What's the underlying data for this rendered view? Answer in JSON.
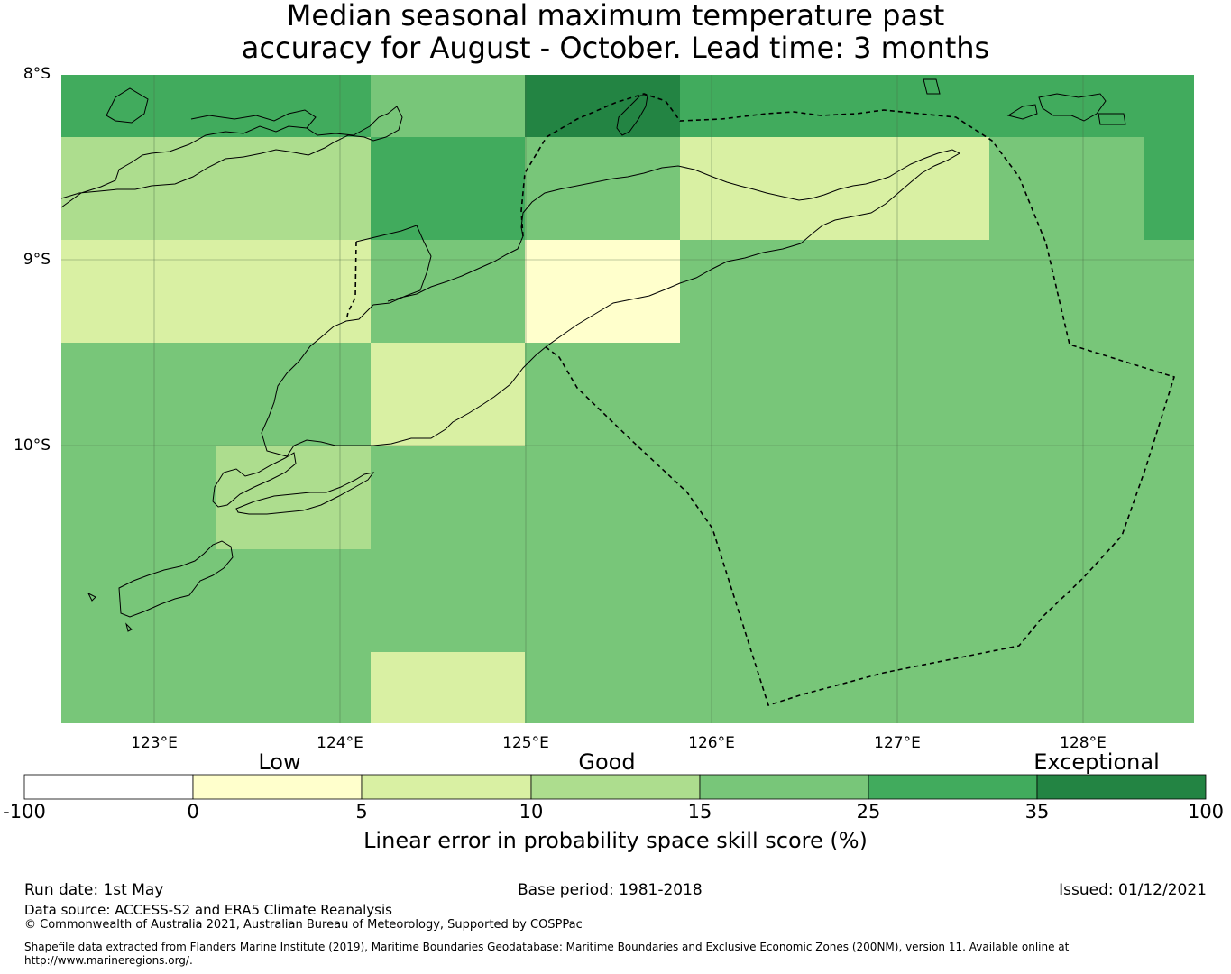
{
  "title": {
    "line1": "Median seasonal maximum temperature past",
    "line2": "accuracy for August - October. Lead time: 3 months"
  },
  "map": {
    "lat_labels": [
      "8°S",
      "9°S",
      "10°S"
    ],
    "lon_labels": [
      "123°E",
      "124°E",
      "125°E",
      "126°E",
      "127°E",
      "128°E"
    ]
  },
  "colorbar": {
    "category_labels": [
      "Low",
      "Good",
      "Exceptional"
    ],
    "ticks": [
      "-100",
      "0",
      "5",
      "10",
      "15",
      "25",
      "35",
      "100"
    ],
    "colors": [
      "#ffffff",
      "#ffffcc",
      "#d9f0a3",
      "#addd8e",
      "#78c679",
      "#41ab5d",
      "#238443"
    ],
    "title": "Linear error in probability space skill score (%)"
  },
  "footer": {
    "run_date": "Run date: 1st May",
    "base_period": "Base period: 1981-2018",
    "issued": "Issued: 01/12/2021",
    "data_source": "Data source: ACCESS-S2 and ERA5 Climate Reanalysis",
    "copyright": "© Commonwealth of Australia 2021, Australian Bureau of Meteorology, Supported by COSPPac",
    "shapefile_line1": "Shapefile data extracted from Flanders Marine Institute (2019), Maritime Boundaries Geodatabase: Maritime Boundaries and Exclusive Economic Zones (200NM), version 11. Available online at",
    "shapefile_line2": "http://www.marineregions.org/."
  }
}
